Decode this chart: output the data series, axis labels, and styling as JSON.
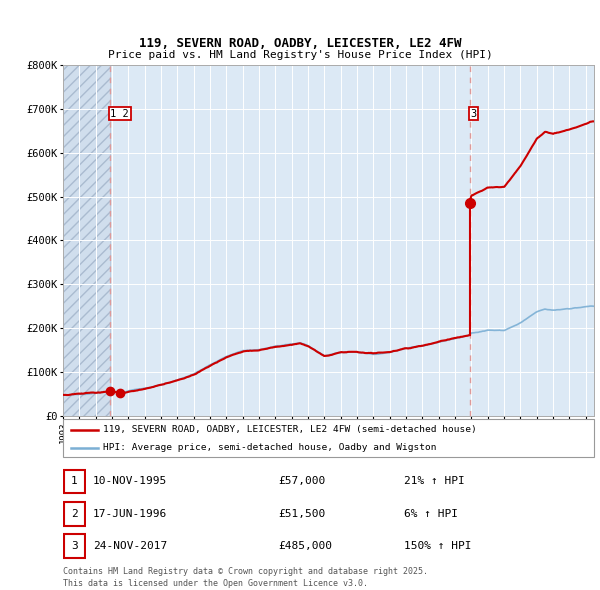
{
  "title_line1": "119, SEVERN ROAD, OADBY, LEICESTER, LE2 4FW",
  "title_line2": "Price paid vs. HM Land Registry's House Price Index (HPI)",
  "hpi_color": "#7bafd4",
  "price_color": "#cc0000",
  "dashed_line_color": "#dd8888",
  "plot_bg_color": "#dce9f5",
  "grid_color": "#ffffff",
  "fig_bg_color": "#ffffff",
  "legend1": "119, SEVERN ROAD, OADBY, LEICESTER, LE2 4FW (semi-detached house)",
  "legend2": "HPI: Average price, semi-detached house, Oadby and Wigston",
  "table_data": [
    [
      "1",
      "10-NOV-1995",
      "£57,000",
      "21% ↑ HPI"
    ],
    [
      "2",
      "17-JUN-1996",
      "£51,500",
      "6% ↑ HPI"
    ],
    [
      "3",
      "24-NOV-2017",
      "£485,000",
      "150% ↑ HPI"
    ]
  ],
  "footer": "Contains HM Land Registry data © Crown copyright and database right 2025.\nThis data is licensed under the Open Government Licence v3.0.",
  "ylim": [
    0,
    800000
  ],
  "yticks": [
    0,
    100000,
    200000,
    300000,
    400000,
    500000,
    600000,
    700000,
    800000
  ],
  "ytick_labels": [
    "£0",
    "£100K",
    "£200K",
    "£300K",
    "£400K",
    "£500K",
    "£600K",
    "£700K",
    "£800K"
  ],
  "xmin": 1993.0,
  "xmax": 2025.5,
  "sale1_yr": 1995.85,
  "sale2_yr": 1996.46,
  "sale3_yr": 2017.9,
  "sale1_price": 57000,
  "sale2_price": 51500,
  "sale3_price": 485000,
  "hpi_key_x": [
    1993.0,
    1994.0,
    1995.0,
    1995.85,
    1996.46,
    1997.0,
    1998.0,
    1999.0,
    2000.0,
    2001.0,
    2002.0,
    2003.0,
    2004.0,
    2005.0,
    2006.0,
    2007.0,
    2007.5,
    2008.0,
    2009.0,
    2010.0,
    2011.0,
    2012.0,
    2013.0,
    2014.0,
    2015.0,
    2016.0,
    2017.0,
    2017.9,
    2018.0,
    2019.0,
    2020.0,
    2021.0,
    2022.0,
    2022.5,
    2023.0,
    2024.0,
    2025.0,
    2025.3
  ],
  "hpi_key_y": [
    48000,
    50000,
    53000,
    57000,
    54000,
    57000,
    63000,
    72000,
    84000,
    97000,
    118000,
    137000,
    150000,
    153000,
    161000,
    166000,
    170000,
    163000,
    140000,
    148000,
    148000,
    144000,
    148000,
    158000,
    164000,
    172000,
    180000,
    188000,
    193000,
    200000,
    200000,
    218000,
    242000,
    248000,
    246000,
    250000,
    255000,
    257000
  ]
}
